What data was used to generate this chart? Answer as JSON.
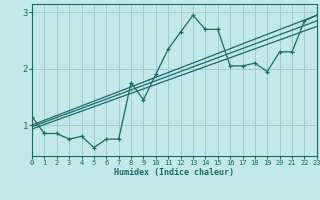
{
  "xlabel": "Humidex (Indice chaleur)",
  "bg_color": "#c2e8e8",
  "line_color": "#1a6b6b",
  "grid_color": "#a0cdcd",
  "xmin": 0,
  "xmax": 23,
  "ymin": 0.45,
  "ymax": 3.15,
  "yticks": [
    1,
    2,
    3
  ],
  "xticks": [
    0,
    1,
    2,
    3,
    4,
    5,
    6,
    7,
    8,
    9,
    10,
    11,
    12,
    13,
    14,
    15,
    16,
    17,
    18,
    19,
    20,
    21,
    22,
    23
  ],
  "scatter_x": [
    0,
    1,
    2,
    3,
    4,
    5,
    6,
    7,
    8,
    9,
    10,
    11,
    12,
    13,
    14,
    15,
    16,
    17,
    18,
    19,
    20,
    21,
    22,
    23
  ],
  "scatter_y": [
    1.15,
    0.85,
    0.85,
    0.75,
    0.8,
    0.6,
    0.75,
    0.75,
    1.75,
    1.45,
    1.9,
    2.35,
    2.65,
    2.95,
    2.7,
    2.7,
    2.05,
    2.05,
    2.1,
    1.95,
    2.3,
    2.3,
    2.85,
    2.95
  ],
  "line1_x": [
    0,
    23
  ],
  "line1_y": [
    1.0,
    2.95
  ],
  "line2_x": [
    0,
    23
  ],
  "line2_y": [
    0.97,
    2.85
  ],
  "line3_x": [
    0,
    23
  ],
  "line3_y": [
    0.93,
    2.75
  ]
}
